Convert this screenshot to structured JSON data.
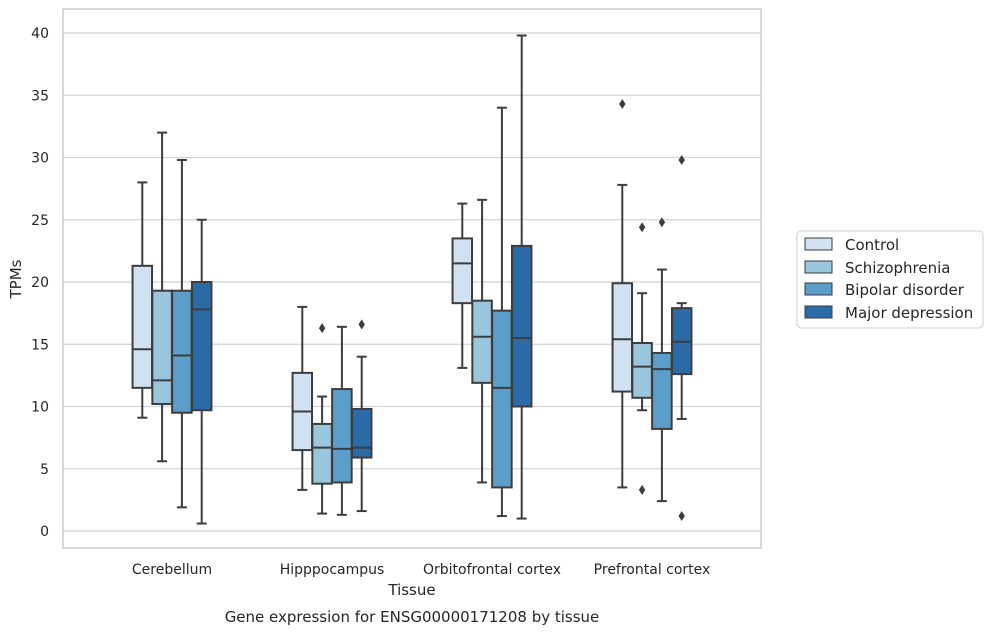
{
  "chart_data": {
    "type": "box",
    "title": "",
    "caption": "Gene expression for ENSG00000171208 by tissue",
    "xlabel": "Tissue",
    "ylabel": "TPMs",
    "ylim": [
      -1.2,
      41.8
    ],
    "yticks": [
      0,
      5,
      10,
      15,
      20,
      25,
      30,
      35,
      40
    ],
    "grid": "horizontal",
    "legend_position": "right",
    "categories": [
      "Cerebellum",
      "Hipppocampus",
      "Orbitofrontal cortex",
      "Prefrontal cortex"
    ],
    "series": [
      {
        "name": "Control",
        "color": "#d2e1f0",
        "boxes": [
          {
            "whisker_low": 9.1,
            "q1": 11.5,
            "median": 14.6,
            "q3": 21.3,
            "whisker_high": 28.0,
            "outliers": []
          },
          {
            "whisker_low": 3.3,
            "q1": 6.5,
            "median": 9.6,
            "q3": 12.7,
            "whisker_high": 18.0,
            "outliers": []
          },
          {
            "whisker_low": 13.1,
            "q1": 18.3,
            "median": 21.5,
            "q3": 23.5,
            "whisker_high": 26.3,
            "outliers": []
          },
          {
            "whisker_low": 3.5,
            "q1": 11.2,
            "median": 15.4,
            "q3": 19.9,
            "whisker_high": 27.8,
            "outliers": [
              34.3
            ]
          }
        ]
      },
      {
        "name": "Schizophrenia",
        "color": "#9ac6dd",
        "boxes": [
          {
            "whisker_low": 5.6,
            "q1": 10.2,
            "median": 12.1,
            "q3": 19.3,
            "whisker_high": 32.0,
            "outliers": []
          },
          {
            "whisker_low": 1.4,
            "q1": 3.8,
            "median": 6.7,
            "q3": 8.6,
            "whisker_high": 10.8,
            "outliers": [
              16.3
            ]
          },
          {
            "whisker_low": 3.9,
            "q1": 11.9,
            "median": 15.6,
            "q3": 18.5,
            "whisker_high": 26.6,
            "outliers": []
          },
          {
            "whisker_low": 9.7,
            "q1": 10.7,
            "median": 13.2,
            "q3": 15.1,
            "whisker_high": 19.1,
            "outliers": [
              24.4,
              3.3
            ]
          }
        ]
      },
      {
        "name": "Bipolar disorder",
        "color": "#5a9ec9",
        "boxes": [
          {
            "whisker_low": 1.9,
            "q1": 9.5,
            "median": 14.1,
            "q3": 19.3,
            "whisker_high": 29.8,
            "outliers": []
          },
          {
            "whisker_low": 1.3,
            "q1": 3.9,
            "median": 6.6,
            "q3": 11.4,
            "whisker_high": 16.4,
            "outliers": []
          },
          {
            "whisker_low": 1.2,
            "q1": 3.5,
            "median": 11.5,
            "q3": 17.7,
            "whisker_high": 34.0,
            "outliers": []
          },
          {
            "whisker_low": 2.4,
            "q1": 8.2,
            "median": 13.0,
            "q3": 14.3,
            "whisker_high": 21.0,
            "outliers": [
              24.8
            ]
          }
        ]
      },
      {
        "name": "Major depression",
        "color": "#2b6ca8",
        "boxes": [
          {
            "whisker_low": 0.6,
            "q1": 9.7,
            "median": 17.8,
            "q3": 20.0,
            "whisker_high": 25.0,
            "outliers": []
          },
          {
            "whisker_low": 1.6,
            "q1": 5.9,
            "median": 6.7,
            "q3": 9.8,
            "whisker_high": 14.0,
            "outliers": [
              16.6
            ]
          },
          {
            "whisker_low": 1.0,
            "q1": 10.0,
            "median": 15.5,
            "q3": 22.9,
            "whisker_high": 39.8,
            "outliers": []
          },
          {
            "whisker_low": 9.0,
            "q1": 12.6,
            "median": 15.2,
            "q3": 17.9,
            "whisker_high": 18.3,
            "outliers": [
              29.8,
              1.2
            ]
          }
        ]
      }
    ]
  }
}
